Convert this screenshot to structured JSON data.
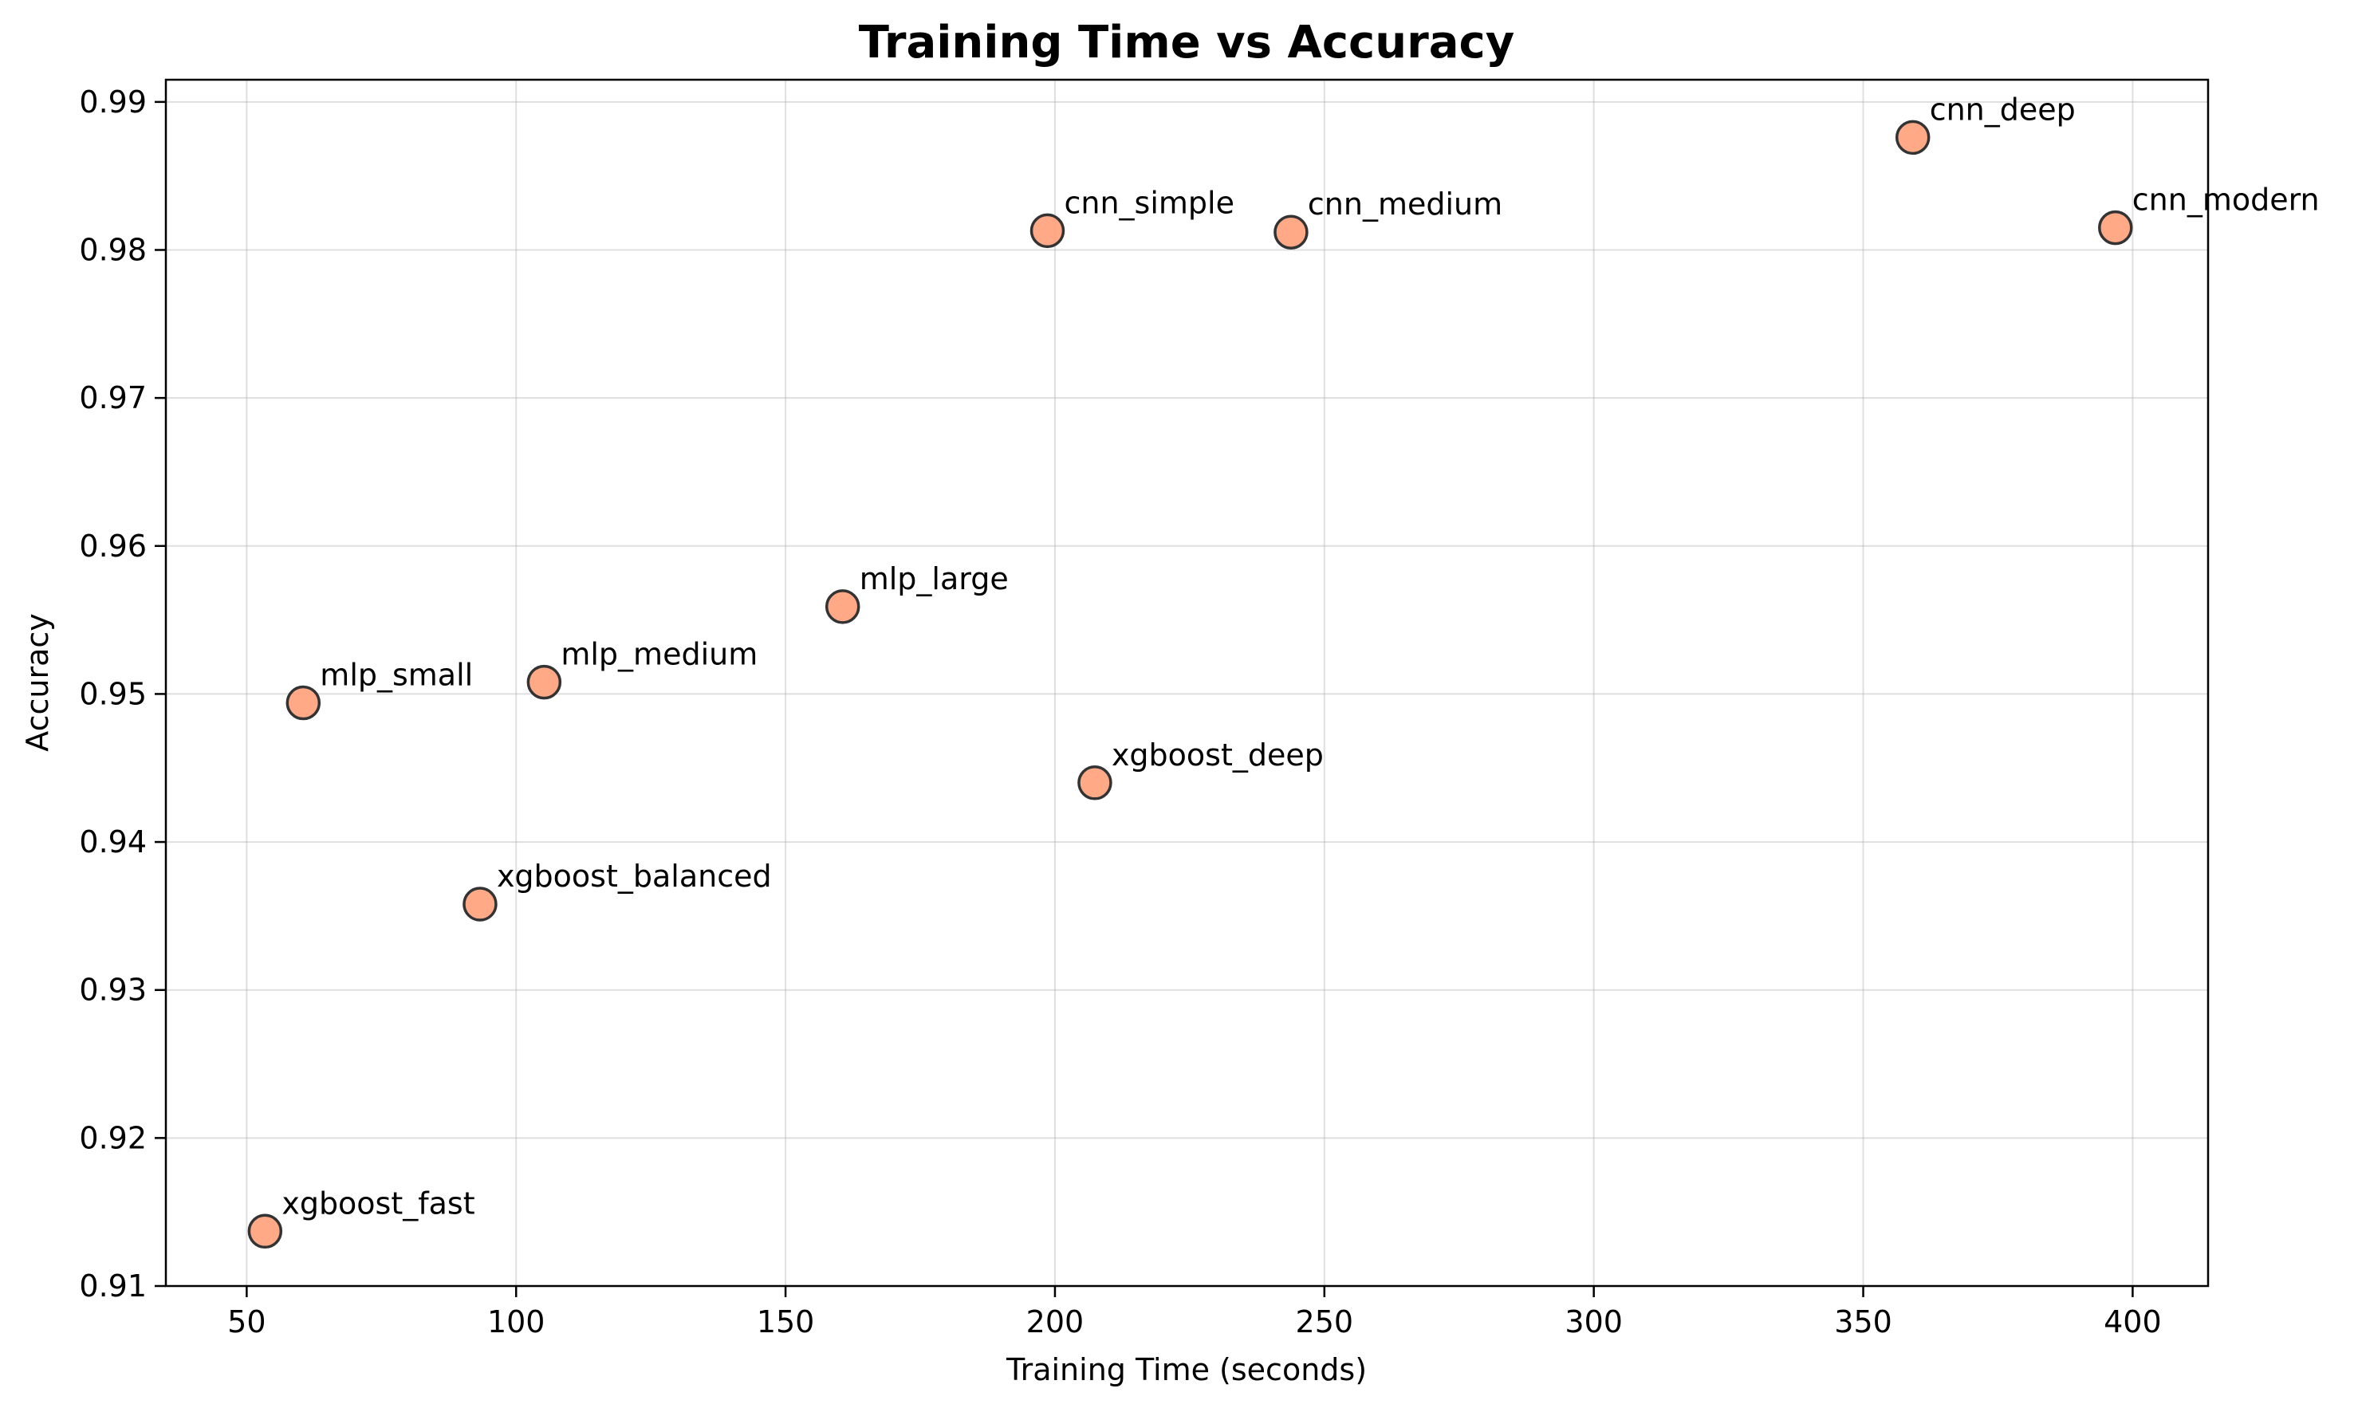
{
  "chart_data": {
    "type": "scatter",
    "title": "Training Time vs Accuracy",
    "xlabel": "Training Time (seconds)",
    "ylabel": "Accuracy",
    "xlim": [
      35,
      414
    ],
    "ylim": [
      0.91,
      0.9915
    ],
    "x_ticks": [
      50,
      100,
      150,
      200,
      250,
      300,
      350,
      400
    ],
    "y_ticks": [
      0.91,
      0.92,
      0.93,
      0.94,
      0.95,
      0.96,
      0.97,
      0.98,
      0.99
    ],
    "x_tick_labels": [
      "50",
      "100",
      "150",
      "200",
      "250",
      "300",
      "350",
      "400"
    ],
    "y_tick_labels": [
      "0.91",
      "0.92",
      "0.93",
      "0.94",
      "0.95",
      "0.96",
      "0.97",
      "0.98",
      "0.99"
    ],
    "grid": true,
    "marker_color": "#ffa07a",
    "marker_edge_color": "#333333",
    "points": [
      {
        "label": "xgboost_fast",
        "x": 53.4,
        "y": 0.9137
      },
      {
        "label": "mlp_small",
        "x": 60.5,
        "y": 0.9494
      },
      {
        "label": "xgboost_balanced",
        "x": 93.3,
        "y": 0.9358
      },
      {
        "label": "mlp_medium",
        "x": 105.2,
        "y": 0.9508
      },
      {
        "label": "mlp_large",
        "x": 160.6,
        "y": 0.9559
      },
      {
        "label": "cnn_simple",
        "x": 198.6,
        "y": 0.9813
      },
      {
        "label": "xgboost_deep",
        "x": 207.4,
        "y": 0.944
      },
      {
        "label": "cnn_medium",
        "x": 243.8,
        "y": 0.9812
      },
      {
        "label": "cnn_deep",
        "x": 359.2,
        "y": 0.9876
      },
      {
        "label": "cnn_modern",
        "x": 396.8,
        "y": 0.9815
      }
    ]
  }
}
